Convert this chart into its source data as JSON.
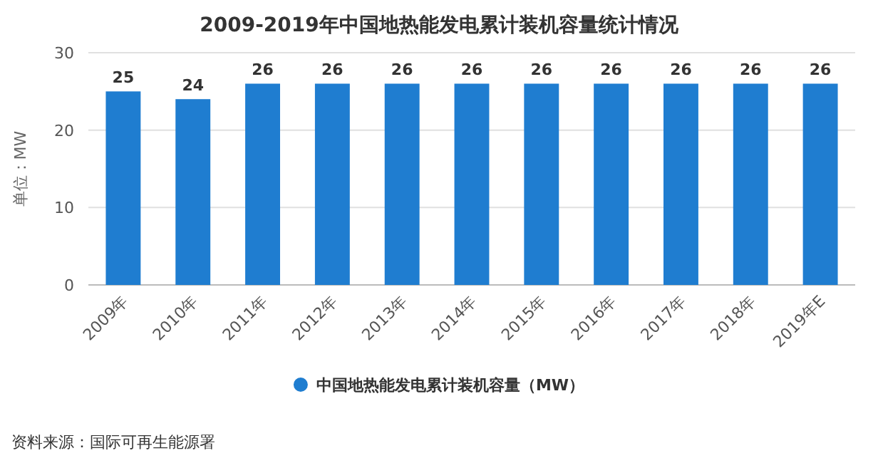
{
  "chart_data": {
    "type": "bar",
    "title": "2009-2019年中国地热能发电累计装机容量统计情况",
    "ylabel": "单位：MW",
    "categories": [
      "2009年",
      "2010年",
      "2011年",
      "2012年",
      "2013年",
      "2014年",
      "2015年",
      "2016年",
      "2017年",
      "2018年",
      "2019年E"
    ],
    "series": [
      {
        "name": "中国地热能发电累计装机容量（MW）",
        "color": "#1f7dd0",
        "values": [
          25,
          24,
          26,
          26,
          26,
          26,
          26,
          26,
          26,
          26,
          26
        ]
      }
    ],
    "ylim": [
      0,
      30
    ],
    "yticks": [
      0,
      10,
      20,
      30
    ],
    "grid": "y",
    "legend": "bottom",
    "data_labels": true,
    "annotations": [
      "资料来源：国际可再生能源署"
    ]
  }
}
